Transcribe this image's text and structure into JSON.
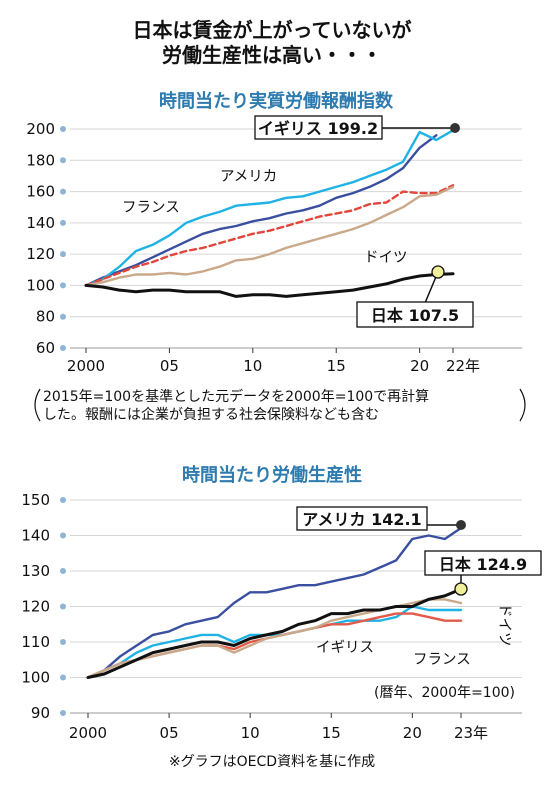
{
  "header": {
    "line1": "日本は賃金が上がっていないが",
    "line2": "労働生産性は高い・・・"
  },
  "chart_data": [
    {
      "type": "line",
      "title": "時間当たり実質労働報酬指数",
      "ylim": [
        60,
        200
      ],
      "yticks": [
        60,
        80,
        100,
        120,
        140,
        160,
        180,
        200
      ],
      "xlim": [
        2000,
        2022
      ],
      "xtick_labels": [
        "2000",
        "05",
        "10",
        "15",
        "20",
        "22年"
      ],
      "note_line1": "2015年=100を基準とした元データを2000年=100で再計算",
      "note_line2": "した。報酬には企業が負担する社会保険料なども含む",
      "series": [
        {
          "name": "アメリカ",
          "color": "#3b4fa0",
          "dash": false,
          "x": [
            2000,
            2001,
            2002,
            2003,
            2004,
            2005,
            2006,
            2007,
            2008,
            2009,
            2010,
            2011,
            2012,
            2013,
            2014,
            2015,
            2016,
            2017,
            2018,
            2019,
            2020,
            2021
          ],
          "values": [
            100,
            105,
            109,
            113,
            118,
            123,
            128,
            133,
            136,
            138,
            141,
            143,
            146,
            148,
            151,
            156,
            159,
            163,
            168,
            175,
            188,
            196
          ]
        },
        {
          "name": "イギリス",
          "color": "#1fb3e5",
          "dash": false,
          "x": [
            2000,
            2001,
            2002,
            2003,
            2004,
            2005,
            2006,
            2007,
            2008,
            2009,
            2010,
            2011,
            2012,
            2013,
            2014,
            2015,
            2016,
            2017,
            2018,
            2019,
            2020,
            2021,
            2022
          ],
          "values": [
            100,
            104,
            112,
            122,
            126,
            132,
            140,
            144,
            147,
            151,
            152,
            153,
            156,
            157,
            160,
            163,
            166,
            170,
            174,
            179,
            198,
            193,
            199.2
          ]
        },
        {
          "name": "フランス",
          "color": "#e2463b",
          "dash": true,
          "x": [
            2000,
            2001,
            2002,
            2003,
            2004,
            2005,
            2006,
            2007,
            2008,
            2009,
            2010,
            2011,
            2012,
            2013,
            2014,
            2015,
            2016,
            2017,
            2018,
            2019,
            2020,
            2021,
            2022
          ],
          "values": [
            100,
            104,
            108,
            112,
            115,
            119,
            122,
            124,
            127,
            130,
            133,
            135,
            138,
            141,
            144,
            146,
            148,
            152,
            153,
            160,
            159,
            159,
            164
          ]
        },
        {
          "name": "ドイツ",
          "color": "#c9a98a",
          "dash": false,
          "x": [
            2000,
            2001,
            2002,
            2003,
            2004,
            2005,
            2006,
            2007,
            2008,
            2009,
            2010,
            2011,
            2012,
            2013,
            2014,
            2015,
            2016,
            2017,
            2018,
            2019,
            2020,
            2021,
            2022
          ],
          "values": [
            100,
            102,
            105,
            107,
            107,
            108,
            107,
            109,
            112,
            116,
            117,
            120,
            124,
            127,
            130,
            133,
            136,
            140,
            145,
            150,
            157,
            158,
            163
          ]
        },
        {
          "name": "日本",
          "color": "#111111",
          "dash": false,
          "x": [
            2000,
            2001,
            2002,
            2003,
            2004,
            2005,
            2006,
            2007,
            2008,
            2009,
            2010,
            2011,
            2012,
            2013,
            2014,
            2015,
            2016,
            2017,
            2018,
            2019,
            2020,
            2021,
            2022
          ],
          "values": [
            100,
            99,
            97,
            96,
            97,
            97,
            96,
            96,
            96,
            93,
            94,
            94,
            93,
            94,
            95,
            96,
            97,
            99,
            101,
            104,
            106,
            107,
            107.5
          ]
        }
      ],
      "callouts": [
        {
          "series": "イギリス",
          "text": "イギリス 199.2",
          "value": 199.2
        },
        {
          "series": "日本",
          "text": "日本 107.5",
          "value": 107.5
        }
      ]
    },
    {
      "type": "line",
      "title": "時間当たり労働生産性",
      "ylim": [
        90,
        150
      ],
      "yticks": [
        90,
        100,
        110,
        120,
        130,
        140,
        150
      ],
      "xlim": [
        2000,
        2023
      ],
      "xtick_labels": [
        "2000",
        "05",
        "10",
        "15",
        "20",
        "23年"
      ],
      "note": "(暦年、2000年=100)",
      "source": "※グラフはOECD資料を基に作成",
      "series": [
        {
          "name": "アメリカ",
          "color": "#3b4fa0",
          "x": [
            2000,
            2001,
            2002,
            2003,
            2004,
            2005,
            2006,
            2007,
            2008,
            2009,
            2010,
            2011,
            2012,
            2013,
            2014,
            2015,
            2016,
            2017,
            2018,
            2019,
            2020,
            2021,
            2022,
            2023
          ],
          "values": [
            100,
            102,
            106,
            109,
            112,
            113,
            115,
            116,
            117,
            121,
            124,
            124,
            125,
            126,
            126,
            127,
            128,
            129,
            131,
            133,
            139,
            140,
            139,
            142.1
          ]
        },
        {
          "name": "イギリス",
          "color": "#1fb3e5",
          "x": [
            2000,
            2001,
            2002,
            2003,
            2004,
            2005,
            2006,
            2007,
            2008,
            2009,
            2010,
            2011,
            2012,
            2013,
            2014,
            2015,
            2016,
            2017,
            2018,
            2019,
            2020,
            2021,
            2022,
            2023
          ],
          "values": [
            100,
            102,
            104,
            107,
            109,
            110,
            111,
            112,
            112,
            110,
            112,
            112,
            112,
            113,
            114,
            115,
            116,
            116,
            116,
            117,
            120,
            119,
            119,
            119
          ]
        },
        {
          "name": "フランス",
          "color": "#e35a4a",
          "x": [
            2000,
            2001,
            2002,
            2003,
            2004,
            2005,
            2006,
            2007,
            2008,
            2009,
            2010,
            2011,
            2012,
            2013,
            2014,
            2015,
            2016,
            2017,
            2018,
            2019,
            2020,
            2021,
            2022,
            2023
          ],
          "values": [
            100,
            102,
            104,
            105,
            106,
            107,
            108,
            109,
            109,
            108,
            110,
            111,
            112,
            113,
            114,
            115,
            115,
            116,
            117,
            118,
            118,
            117,
            116,
            116
          ]
        },
        {
          "name": "ドイツ",
          "color": "#c9a98a",
          "x": [
            2000,
            2001,
            2002,
            2003,
            2004,
            2005,
            2006,
            2007,
            2008,
            2009,
            2010,
            2011,
            2012,
            2013,
            2014,
            2015,
            2016,
            2017,
            2018,
            2019,
            2020,
            2021,
            2022,
            2023
          ],
          "values": [
            100,
            102,
            104,
            105,
            106,
            107,
            108,
            109,
            109,
            107,
            109,
            111,
            112,
            113,
            114,
            116,
            117,
            118,
            119,
            120,
            121,
            122,
            122,
            121
          ]
        },
        {
          "name": "日本",
          "color": "#111111",
          "x": [
            2000,
            2001,
            2002,
            2003,
            2004,
            2005,
            2006,
            2007,
            2008,
            2009,
            2010,
            2011,
            2012,
            2013,
            2014,
            2015,
            2016,
            2017,
            2018,
            2019,
            2020,
            2021,
            2022,
            2023
          ],
          "values": [
            100,
            101,
            103,
            105,
            107,
            108,
            109,
            110,
            110,
            109,
            111,
            112,
            113,
            115,
            116,
            118,
            118,
            119,
            119,
            120,
            120,
            122,
            123,
            124.9
          ]
        }
      ],
      "callouts": [
        {
          "series": "アメリカ",
          "text": "アメリカ 142.1",
          "value": 142.1
        },
        {
          "series": "日本",
          "text": "日本 124.9",
          "value": 124.9
        }
      ]
    }
  ]
}
